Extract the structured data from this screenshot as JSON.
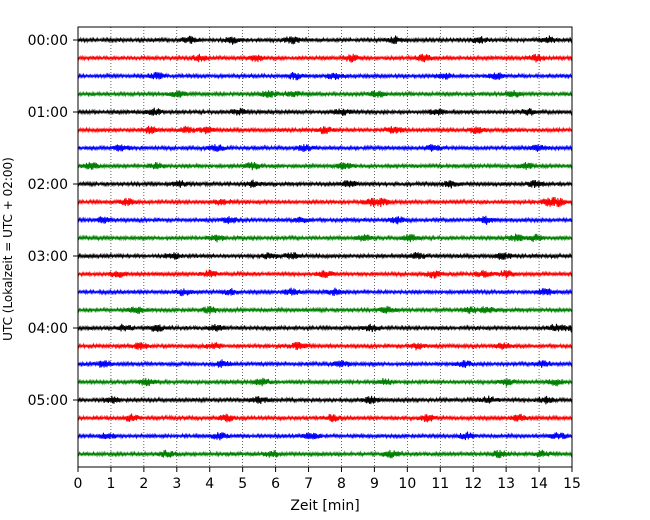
{
  "chart_data": {
    "type": "line",
    "title": "",
    "xlabel": "Zeit  [min]",
    "ylabel": "UTC (Lokalzeit = UTC + 02:00)",
    "xlim": [
      0,
      15
    ],
    "x_ticks": [
      "0",
      "1",
      "2",
      "3",
      "4",
      "5",
      "6",
      "7",
      "8",
      "9",
      "10",
      "11",
      "12",
      "13",
      "14",
      "15"
    ],
    "y_ticks": [
      "00:00",
      "01:00",
      "02:00",
      "03:00",
      "04:00",
      "05:00"
    ],
    "grid": "vertical dotted",
    "trace_colors": [
      "#000000",
      "#ff0000",
      "#0000ff",
      "#008000"
    ],
    "traces": [
      {
        "start": "00:00",
        "color": "#000000",
        "events": [
          3.4,
          4.7,
          6.5,
          9.6,
          12.2,
          14.3
        ]
      },
      {
        "start": "00:15",
        "color": "#ff0000",
        "events": [
          3.7,
          5.4,
          8.3,
          10.5,
          13.9
        ]
      },
      {
        "start": "00:30",
        "color": "#0000ff",
        "events": [
          2.4,
          6.6,
          7.8,
          11.1,
          12.7
        ]
      },
      {
        "start": "00:45",
        "color": "#008000",
        "events": [
          3.0,
          5.8,
          6.5,
          9.1,
          13.2
        ]
      },
      {
        "start": "01:00",
        "color": "#000000",
        "events": [
          2.3,
          4.9,
          8.0,
          10.9,
          13.7
        ]
      },
      {
        "start": "01:15",
        "color": "#ff0000",
        "events": [
          2.2,
          3.3,
          3.9,
          7.5,
          9.6,
          12.1
        ]
      },
      {
        "start": "01:30",
        "color": "#0000ff",
        "events": [
          1.3,
          4.2,
          6.9,
          10.8,
          14.0
        ]
      },
      {
        "start": "01:45",
        "color": "#008000",
        "events": [
          0.4,
          2.4,
          5.3,
          8.1,
          13.6
        ]
      },
      {
        "start": "02:00",
        "color": "#000000",
        "events": [
          3.1,
          5.3,
          8.2,
          11.3,
          13.9
        ]
      },
      {
        "start": "02:15",
        "color": "#ff0000",
        "events": [
          1.5,
          4.4,
          8.9,
          9.2,
          14.3,
          14.6
        ]
      },
      {
        "start": "02:30",
        "color": "#0000ff",
        "events": [
          0.8,
          4.6,
          6.8,
          9.7,
          12.4
        ]
      },
      {
        "start": "02:45",
        "color": "#008000",
        "events": [
          4.2,
          8.7,
          10.1,
          13.3,
          13.9
        ]
      },
      {
        "start": "03:00",
        "color": "#000000",
        "events": [
          2.9,
          5.8,
          6.5,
          10.3,
          12.9
        ]
      },
      {
        "start": "03:15",
        "color": "#ff0000",
        "events": [
          1.2,
          4.0,
          7.5,
          10.8,
          12.3,
          13.0
        ]
      },
      {
        "start": "03:30",
        "color": "#0000ff",
        "events": [
          3.2,
          4.6,
          6.5,
          7.8,
          14.2
        ]
      },
      {
        "start": "03:45",
        "color": "#008000",
        "events": [
          1.8,
          4.0,
          9.4,
          11.9,
          12.4
        ]
      },
      {
        "start": "04:00",
        "color": "#000000",
        "events": [
          1.4,
          2.4,
          4.2,
          8.9,
          14.5,
          15.0
        ]
      },
      {
        "start": "04:15",
        "color": "#ff0000",
        "events": [
          1.9,
          4.1,
          6.7,
          10.3,
          12.9
        ]
      },
      {
        "start": "04:30",
        "color": "#0000ff",
        "events": [
          0.8,
          4.4,
          8.0,
          11.7,
          14.1
        ]
      },
      {
        "start": "04:45",
        "color": "#008000",
        "events": [
          2.1,
          5.6,
          9.3,
          13.0,
          14.5
        ]
      },
      {
        "start": "05:00",
        "color": "#000000",
        "events": [
          1.0,
          5.5,
          8.9,
          12.5,
          14.2
        ]
      },
      {
        "start": "05:15",
        "color": "#ff0000",
        "events": [
          1.6,
          4.5,
          7.7,
          10.6,
          13.4
        ]
      },
      {
        "start": "05:30",
        "color": "#0000ff",
        "events": [
          0.9,
          4.3,
          7.1,
          11.8,
          14.6
        ]
      },
      {
        "start": "05:45",
        "color": "#008000",
        "events": [
          2.7,
          5.9,
          9.5,
          12.8,
          14.1
        ]
      }
    ]
  }
}
